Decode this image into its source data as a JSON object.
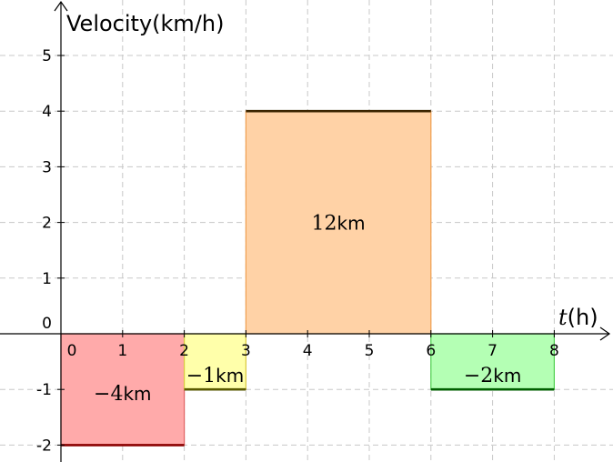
{
  "chart_data": {
    "type": "area",
    "title": "",
    "ylabel": "Velocity(km/h)",
    "xlabel": {
      "symbol": "t",
      "unit": "(h)"
    },
    "xlim": [
      -1,
      9
    ],
    "ylim": [
      -2.2,
      5.8
    ],
    "x_ticks": [
      "0",
      "1",
      "2",
      "3",
      "4",
      "5",
      "6",
      "7",
      "8"
    ],
    "y_ticks": [
      "-2",
      "-1",
      "0",
      "1",
      "2",
      "3",
      "4",
      "5"
    ],
    "grid": true,
    "segments": [
      {
        "x0": 0,
        "x1": 2,
        "v": -2,
        "num": "−4",
        "unit": "km",
        "fill": "#ffaaaa",
        "edge": "#e06060",
        "line": "#8b0000"
      },
      {
        "x0": 2,
        "x1": 3,
        "v": -1,
        "num": "−1",
        "unit": "km",
        "fill": "#ffffaa",
        "edge": "#d8c840",
        "line": "#5a5a00"
      },
      {
        "x0": 3,
        "x1": 6,
        "v": 4,
        "num": "12",
        "unit": "km",
        "fill": "#ffd2a6",
        "edge": "#f0a050",
        "line": "#3a2400"
      },
      {
        "x0": 6,
        "x1": 8,
        "v": -1,
        "num": "−2",
        "unit": "km",
        "fill": "#b4ffb4",
        "edge": "#50d050",
        "line": "#006000"
      }
    ]
  }
}
